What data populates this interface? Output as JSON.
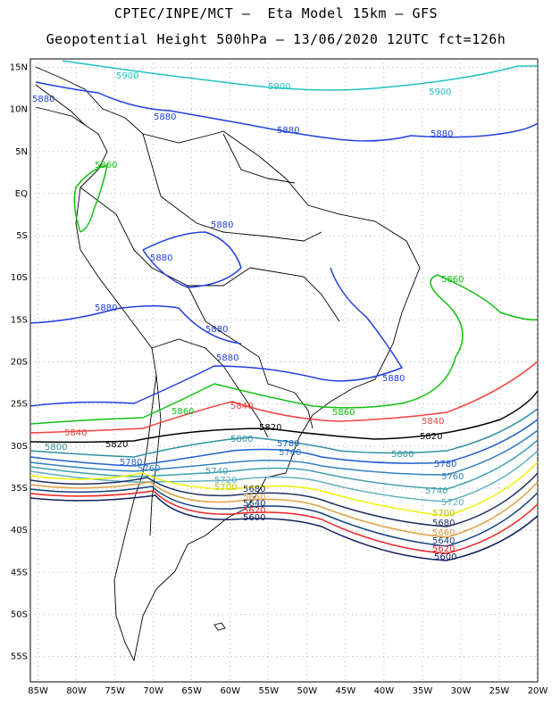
{
  "title": {
    "line1": "CPTEC/INPE/MCT –  Eta Model 15km – GFS",
    "line2": "Geopotential Height 500hPa – 13/06/2020 12UTC fct=126h"
  },
  "axes": {
    "lat_labels": [
      "15N",
      "10N",
      "5N",
      "EQ",
      "5S",
      "10S",
      "15S",
      "20S",
      "25S",
      "30S",
      "35S",
      "40S",
      "45S",
      "50S",
      "55S"
    ],
    "lat_values": [
      15,
      10,
      5,
      0,
      -5,
      -10,
      -15,
      -20,
      -25,
      -30,
      -35,
      -40,
      -45,
      -50,
      -55
    ],
    "lon_labels": [
      "85W",
      "80W",
      "75W",
      "70W",
      "65W",
      "60W",
      "55W",
      "50W",
      "45W",
      "40W",
      "35W",
      "30W",
      "25W",
      "20W"
    ],
    "lon_values": [
      -85,
      -80,
      -75,
      -70,
      -65,
      -60,
      -55,
      -50,
      -45,
      -40,
      -35,
      -30,
      -25,
      -20
    ],
    "lon_range": [
      -86,
      -20
    ],
    "lat_range": [
      -58,
      16
    ],
    "grid": "dotted"
  },
  "contours": [
    {
      "level": "5900",
      "color": "#20c0c0",
      "labels": [
        "5900",
        "5900",
        "5900"
      ]
    },
    {
      "level": "5880",
      "color": "#2040e0",
      "labels": [
        "5880",
        "5880",
        "5880",
        "5880",
        "5880",
        "5880",
        "5880",
        "5880",
        "5880",
        "5880"
      ]
    },
    {
      "level": "5860",
      "color": "#10c010",
      "labels": [
        "5860",
        "5860",
        "5860",
        "5860"
      ]
    },
    {
      "level": "5840",
      "color": "#f04040",
      "labels": [
        "5840",
        "5840",
        "5840"
      ]
    },
    {
      "level": "5820",
      "color": "#000000",
      "labels": [
        "5820",
        "5820",
        "5820"
      ]
    },
    {
      "level": "5800",
      "color": "#3090a0",
      "labels": [
        "5800",
        "5800",
        "5800"
      ]
    },
    {
      "level": "5780",
      "color": "#2060d0",
      "labels": [
        "5780",
        "5780",
        "5780"
      ]
    },
    {
      "level": "5760",
      "color": "#3080c0",
      "labels": [
        "5760",
        "5760",
        "5760"
      ]
    },
    {
      "level": "5740",
      "color": "#40a0b0",
      "labels": [
        "5740",
        "5740"
      ]
    },
    {
      "level": "5720",
      "color": "#60b0c0",
      "labels": [
        "5720",
        "5720"
      ]
    },
    {
      "level": "5700",
      "color": "#f0f000",
      "labels": [
        "5700",
        "5700"
      ]
    },
    {
      "level": "5680",
      "color": "#203060",
      "labels": [
        "5680",
        "5680"
      ]
    },
    {
      "level": "5660",
      "color": "#e0a040",
      "labels": [
        "5660",
        "5660"
      ]
    },
    {
      "level": "5640",
      "color": "#104080",
      "labels": [
        "5640",
        "5640"
      ]
    },
    {
      "level": "5620",
      "color": "#f02020",
      "labels": [
        "5620",
        "5620"
      ]
    },
    {
      "level": "5600",
      "color": "#102060",
      "labels": [
        "5600",
        "5600"
      ]
    }
  ]
}
